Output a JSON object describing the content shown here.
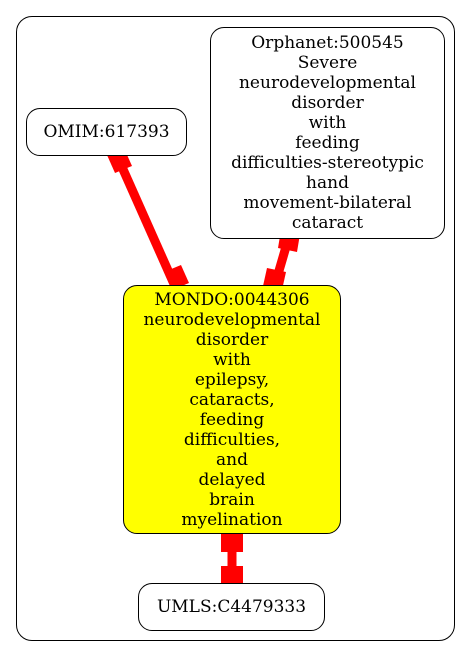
{
  "colors": {
    "edge": "#ff0000",
    "highlight_fill": "#ffff00",
    "node_fill": "#ffffff",
    "border": "#000000"
  },
  "nodes": {
    "omim": {
      "lines": [
        "OMIM:617393"
      ]
    },
    "orphanet": {
      "lines": [
        "Orphanet:500545",
        "Severe",
        "neurodevelopmental",
        "disorder",
        "with",
        "feeding",
        "difficulties-stereotypic",
        "hand",
        "movement-bilateral",
        "cataract"
      ]
    },
    "mondo": {
      "lines": [
        "MONDO:0044306",
        "neurodevelopmental",
        "disorder",
        "with",
        "epilepsy,",
        "cataracts,",
        "feeding",
        "difficulties,",
        "and",
        "delayed",
        "brain",
        "myelination"
      ]
    },
    "umls": {
      "lines": [
        "UMLS:C4479333"
      ]
    }
  }
}
